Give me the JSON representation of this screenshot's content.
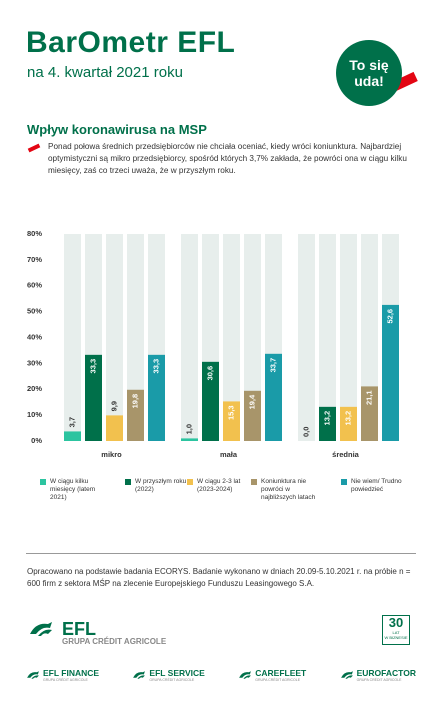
{
  "header": {
    "logo": "BarOmetr EFL",
    "subtitle": "na 4. kwartał 2021 roku",
    "badge": [
      "To się",
      "uda!"
    ]
  },
  "section": {
    "title": "Wpływ koronawirusa na MSP",
    "text": "Ponad połowa średnich przedsiębiorców nie chciała oceniać, kiedy wróci koniunktura. Najbardziej optymistyczni są mikro przedsiębiorcy, spośród których 3,7% zakłada, że powróci ona w ciągu kilku miesięcy, zaś co trzeci uważa, że w przyszłym roku."
  },
  "chart_data": {
    "type": "bar",
    "categories": [
      "mikro",
      "mała",
      "średnia"
    ],
    "series": [
      {
        "name": "W ciągu kilku miesięcy (latem 2021)",
        "color": "#2cc4a0",
        "values": [
          3.7,
          1.0,
          0.0
        ],
        "value_labels": [
          "3,7",
          "1,0",
          "0,0"
        ]
      },
      {
        "name": "W przyszłym roku (2022)",
        "color": "#00704a",
        "values": [
          33.3,
          30.6,
          13.2
        ],
        "value_labels": [
          "33,3",
          "30,6",
          "13,2"
        ]
      },
      {
        "name": "W ciągu 2-3 lat (2023-2024)",
        "color": "#f2c14e",
        "values": [
          9.9,
          15.3,
          13.2
        ],
        "value_labels": [
          "9,9",
          "15,3",
          "13,2"
        ]
      },
      {
        "name": "Koniunktura nie powróci w najbliższych latach",
        "color": "#a8956a",
        "values": [
          19.8,
          19.4,
          21.1
        ],
        "value_labels": [
          "19,8",
          "19,4",
          "21,1"
        ]
      },
      {
        "name": "Nie wiem/ Trudno powiedzieć",
        "color": "#1a9ba8",
        "values": [
          33.3,
          33.7,
          52.6
        ],
        "value_labels": [
          "33,3",
          "33,7",
          "52,6"
        ]
      }
    ],
    "ylim": [
      0,
      80
    ],
    "yticks": [
      {
        "value": 0,
        "label": "0%"
      },
      {
        "value": 10,
        "label": "10%"
      },
      {
        "value": 20,
        "label": "20%"
      },
      {
        "value": 30,
        "label": "30%"
      },
      {
        "value": 40,
        "label": "40%"
      },
      {
        "value": 50,
        "label": "50%"
      },
      {
        "value": 60,
        "label": "60%"
      },
      {
        "value": 70,
        "label": "70%"
      },
      {
        "value": 80,
        "label": "80%"
      }
    ],
    "grid": false
  },
  "footer": {
    "note": "Opracowano na podstawie badania ECORYS. Badanie wykonano w dniach 20.09-5.10.2021 r. na próbie n = 600 firm z sektora MŚP na zlecenie Europejskiego Funduszu Leasingowego S.A.",
    "brand": "EFL",
    "brand_group": "GRUPA CRÉDIT AGRICOLE",
    "anniversary": [
      "30",
      "LAT",
      "W BIZNESIE"
    ],
    "companies": [
      {
        "name": "EFL FINANCE",
        "group": "GRUPA CRÉDIT AGRICOLE"
      },
      {
        "name": "EFL SERVICE",
        "group": "GRUPA CRÉDIT AGRICOLE"
      },
      {
        "name": "CAREFLEET",
        "group": "GRUPA CRÉDIT AGRICOLE"
      },
      {
        "name": "EUROFACTOR",
        "group": "GRUPA CRÉDIT AGRICOLE"
      }
    ]
  }
}
